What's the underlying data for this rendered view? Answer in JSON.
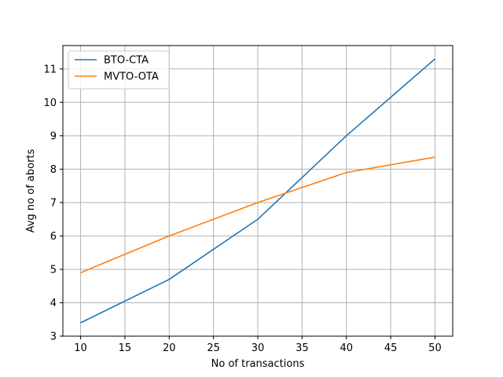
{
  "chart_data": {
    "type": "line",
    "x": [
      10,
      20,
      30,
      40,
      50
    ],
    "series": [
      {
        "name": "BTO-CTA",
        "color": "#1f77b4",
        "values": [
          3.4,
          4.7,
          6.5,
          9.0,
          11.3
        ]
      },
      {
        "name": "MVTO-OTA",
        "color": "#ff7f0e",
        "values": [
          4.9,
          6.0,
          7.0,
          7.9,
          8.36
        ]
      }
    ],
    "xlabel": "No of transactions",
    "ylabel": "Avg no of aborts",
    "xlim": [
      8,
      52
    ],
    "ylim": [
      3,
      11.7
    ],
    "xticks": [
      10,
      15,
      20,
      25,
      30,
      35,
      40,
      45,
      50
    ],
    "yticks": [
      3,
      4,
      5,
      6,
      7,
      8,
      9,
      10,
      11
    ],
    "grid": true,
    "legend_position": "top-left"
  }
}
